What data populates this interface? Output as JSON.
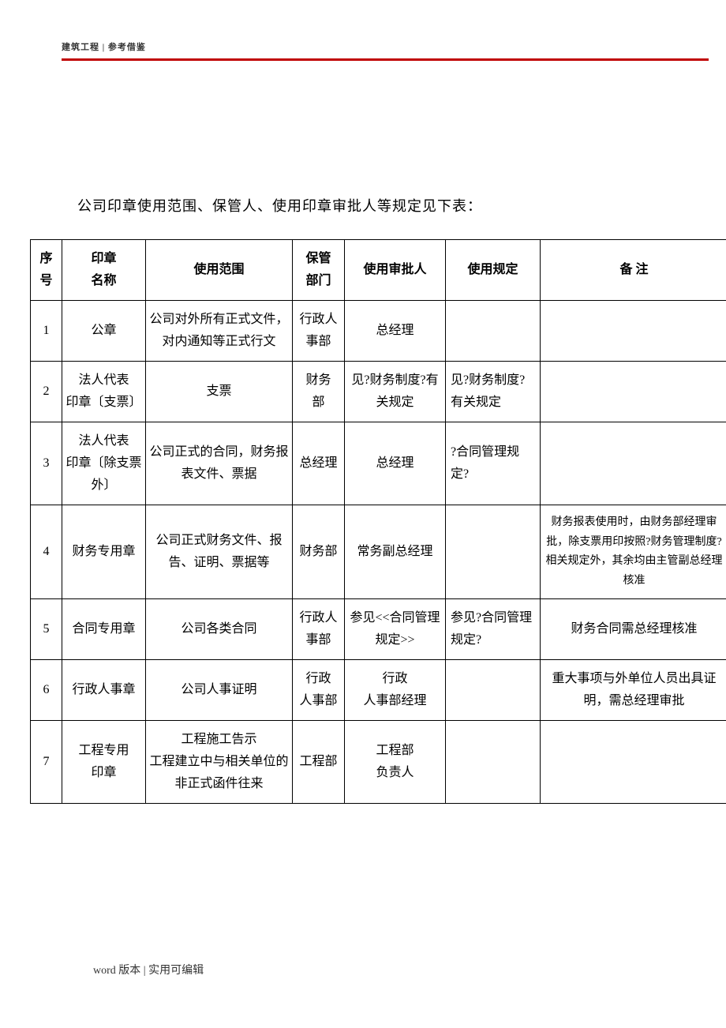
{
  "header": {
    "label": "建筑工程 | 参考借鉴",
    "rule_color": "#c00000"
  },
  "intro": "公司印章使用范围、保管人、使用印章审批人等规定见下表：",
  "table": {
    "columns": [
      "序号",
      "印章\n名称",
      "使用范围",
      "保管\n部门",
      "使用审批人",
      "使用规定",
      "备 注"
    ],
    "rows": [
      {
        "no": "1",
        "name": "公章",
        "scope": "公司对外所有正式文件，对内通知等正式行文",
        "dept": "行政人事部",
        "approver": "总经理",
        "rule": "",
        "note": ""
      },
      {
        "no": "2",
        "name": "法人代表\n印章〔支票〕",
        "scope": "支票",
        "dept": "财务\n部",
        "approver": "见?财务制度?有关规定",
        "rule": "见?财务制度?有关规定",
        "note": ""
      },
      {
        "no": "3",
        "name": "法人代表\n印章〔除支票外〕",
        "scope": "公司正式的合同，财务报表文件、票据",
        "dept": "总经理",
        "approver": "总经理",
        "rule": "?合同管理规定?",
        "note": ""
      },
      {
        "no": "4",
        "name": "财务专用章",
        "scope": "公司正式财务文件、报告、证明、票据等",
        "dept": "财务部",
        "approver": "常务副总经理",
        "rule": "",
        "note": "财务报表使用时，由财务部经理审批，除支票用印按照?财务管理制度?相关规定外，其余均由主管副总经理核准"
      },
      {
        "no": "5",
        "name": "合同专用章",
        "scope": "公司各类合同",
        "dept": "行政人事部",
        "approver": "参见<<合同管理规定>>",
        "rule": "参见?合同管理规定?",
        "note": "财务合同需总经理核准"
      },
      {
        "no": "6",
        "name": "行政人事章",
        "scope": "公司人事证明",
        "dept": "行政\n人事部",
        "approver": "行政\n人事部经理",
        "rule": "",
        "note": "重大事项与外单位人员出具证明，需总经理审批"
      },
      {
        "no": "7",
        "name": "工程专用\n印章",
        "scope": "工程施工告示\n工程建立中与相关单位的非正式函件往来",
        "dept": "工程部",
        "approver": "工程部\n负责人",
        "rule": "",
        "note": ""
      }
    ],
    "note_small_font_rows": [
      3
    ],
    "left_align_note_rows": [
      4,
      5
    ]
  },
  "footer": "word 版本 | 实用可编辑"
}
